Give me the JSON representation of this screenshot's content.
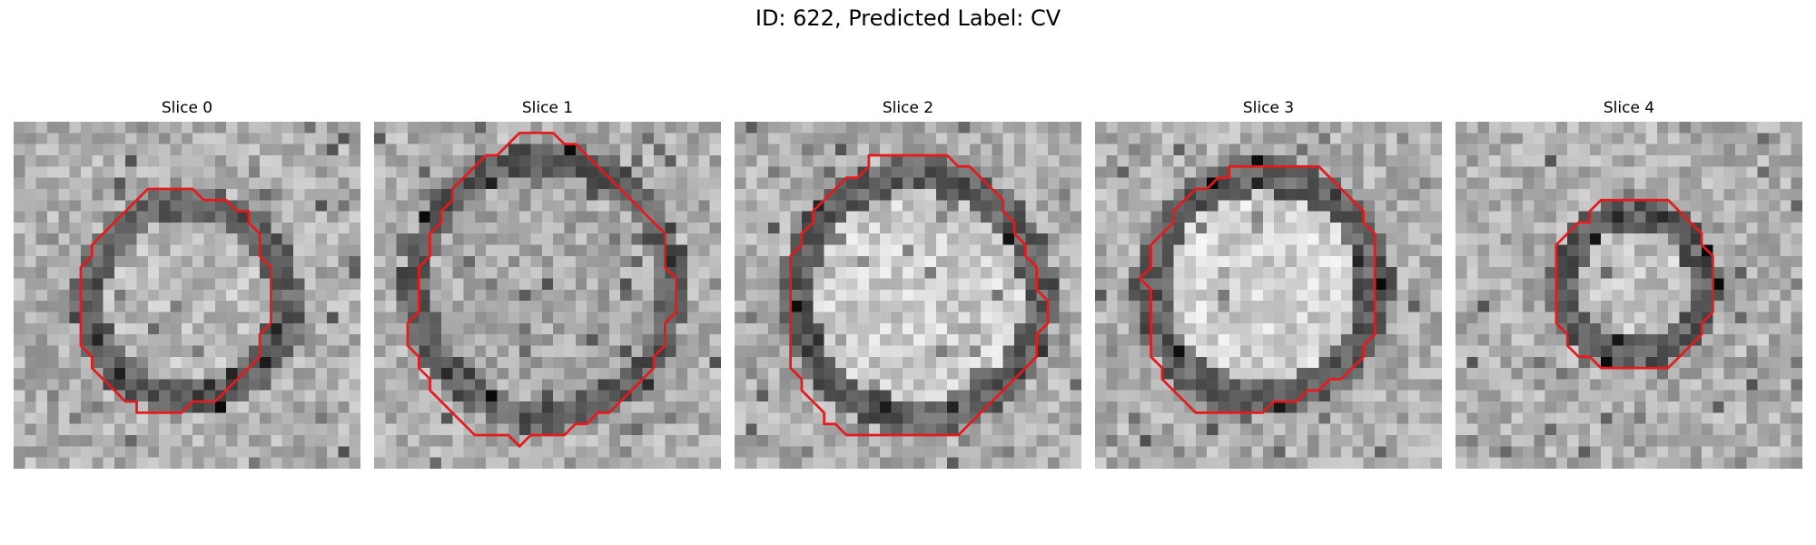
{
  "figure": {
    "title": "ID: 622, Predicted Label: CV"
  },
  "slices": [
    {
      "title": "Slice 0",
      "contour": [
        [
          12,
          6
        ],
        [
          16,
          6
        ],
        [
          17,
          7
        ],
        [
          19,
          7
        ],
        [
          20,
          8
        ],
        [
          21,
          8
        ],
        [
          21,
          9
        ],
        [
          22,
          10
        ],
        [
          22,
          12
        ],
        [
          23,
          13
        ],
        [
          23,
          18
        ],
        [
          22,
          19
        ],
        [
          22,
          21
        ],
        [
          21,
          22
        ],
        [
          20,
          23
        ],
        [
          19,
          24
        ],
        [
          18,
          25
        ],
        [
          16,
          25
        ],
        [
          15,
          26
        ],
        [
          11,
          26
        ],
        [
          11,
          25
        ],
        [
          10,
          25
        ],
        [
          9,
          24
        ],
        [
          8,
          23
        ],
        [
          7,
          22
        ],
        [
          7,
          21
        ],
        [
          6,
          20
        ],
        [
          6,
          16
        ],
        [
          6,
          13
        ],
        [
          7,
          12
        ],
        [
          7,
          11
        ],
        [
          8,
          10
        ],
        [
          9,
          9
        ],
        [
          10,
          8
        ],
        [
          11,
          7
        ]
      ],
      "outline_color": "#e41a1c"
    },
    {
      "title": "Slice 1",
      "contour": [
        [
          12,
          2
        ],
        [
          13,
          1
        ],
        [
          16,
          1
        ],
        [
          17,
          2
        ],
        [
          18,
          2
        ],
        [
          19,
          3
        ],
        [
          20,
          4
        ],
        [
          21,
          5
        ],
        [
          22,
          6
        ],
        [
          23,
          7
        ],
        [
          24,
          8
        ],
        [
          25,
          9
        ],
        [
          26,
          10
        ],
        [
          26,
          13
        ],
        [
          27,
          14
        ],
        [
          27,
          17
        ],
        [
          26,
          18
        ],
        [
          26,
          20
        ],
        [
          25,
          21
        ],
        [
          25,
          22
        ],
        [
          24,
          23
        ],
        [
          23,
          24
        ],
        [
          22,
          25
        ],
        [
          21,
          26
        ],
        [
          20,
          26
        ],
        [
          19,
          27
        ],
        [
          18,
          27
        ],
        [
          17,
          28
        ],
        [
          14,
          28
        ],
        [
          13,
          29
        ],
        [
          12,
          28
        ],
        [
          9,
          28
        ],
        [
          8,
          27
        ],
        [
          7,
          26
        ],
        [
          6,
          25
        ],
        [
          5,
          24
        ],
        [
          5,
          23
        ],
        [
          4,
          22
        ],
        [
          4,
          21
        ],
        [
          3,
          20
        ],
        [
          3,
          18
        ],
        [
          4,
          17
        ],
        [
          4,
          13
        ],
        [
          5,
          12
        ],
        [
          5,
          10
        ],
        [
          6,
          9
        ],
        [
          6,
          8
        ],
        [
          7,
          7
        ],
        [
          7,
          6
        ],
        [
          8,
          5
        ],
        [
          9,
          4
        ],
        [
          10,
          3
        ],
        [
          11,
          3
        ]
      ],
      "outline_color": "#e41a1c"
    },
    {
      "title": "Slice 2",
      "contour": [
        [
          13,
          3
        ],
        [
          19,
          3
        ],
        [
          20,
          4
        ],
        [
          21,
          4
        ],
        [
          22,
          5
        ],
        [
          23,
          6
        ],
        [
          24,
          7
        ],
        [
          24,
          8
        ],
        [
          25,
          9
        ],
        [
          25,
          10
        ],
        [
          26,
          11
        ],
        [
          26,
          12
        ],
        [
          27,
          13
        ],
        [
          27,
          15
        ],
        [
          28,
          16
        ],
        [
          28,
          18
        ],
        [
          27,
          19
        ],
        [
          27,
          21
        ],
        [
          26,
          22
        ],
        [
          25,
          23
        ],
        [
          24,
          24
        ],
        [
          23,
          25
        ],
        [
          22,
          26
        ],
        [
          21,
          27
        ],
        [
          20,
          28
        ],
        [
          10,
          28
        ],
        [
          9,
          27
        ],
        [
          8,
          27
        ],
        [
          8,
          26
        ],
        [
          7,
          25
        ],
        [
          6,
          24
        ],
        [
          6,
          23
        ],
        [
          5,
          22
        ],
        [
          5,
          20
        ],
        [
          5,
          14
        ],
        [
          5,
          12
        ],
        [
          6,
          11
        ],
        [
          6,
          10
        ],
        [
          7,
          9
        ],
        [
          7,
          8
        ],
        [
          8,
          7
        ],
        [
          9,
          6
        ],
        [
          10,
          5
        ],
        [
          11,
          5
        ],
        [
          12,
          4
        ],
        [
          12,
          3
        ]
      ],
      "outline_color": "#e41a1c"
    },
    {
      "title": "Slice 3",
      "contour": [
        [
          12,
          4
        ],
        [
          20,
          4
        ],
        [
          21,
          5
        ],
        [
          22,
          6
        ],
        [
          23,
          7
        ],
        [
          24,
          8
        ],
        [
          24,
          9
        ],
        [
          25,
          10
        ],
        [
          25,
          19
        ],
        [
          24,
          20
        ],
        [
          24,
          21
        ],
        [
          23,
          22
        ],
        [
          22,
          23
        ],
        [
          21,
          23
        ],
        [
          20,
          24
        ],
        [
          19,
          24
        ],
        [
          18,
          25
        ],
        [
          16,
          25
        ],
        [
          15,
          26
        ],
        [
          9,
          26
        ],
        [
          8,
          25
        ],
        [
          7,
          24
        ],
        [
          6,
          23
        ],
        [
          6,
          22
        ],
        [
          5,
          21
        ],
        [
          5,
          15
        ],
        [
          5,
          15
        ],
        [
          4,
          14
        ],
        [
          5,
          13
        ],
        [
          5,
          11
        ],
        [
          6,
          10
        ],
        [
          7,
          9
        ],
        [
          7,
          8
        ],
        [
          8,
          7
        ],
        [
          9,
          6
        ],
        [
          10,
          6
        ],
        [
          11,
          5
        ],
        [
          12,
          5
        ]
      ],
      "outline_color": "#e41a1c"
    },
    {
      "title": "Slice 4",
      "contour": [
        [
          13,
          7
        ],
        [
          19,
          7
        ],
        [
          20,
          8
        ],
        [
          21,
          9
        ],
        [
          22,
          10
        ],
        [
          22,
          11
        ],
        [
          23,
          12
        ],
        [
          23,
          17
        ],
        [
          22,
          18
        ],
        [
          22,
          19
        ],
        [
          21,
          20
        ],
        [
          20,
          21
        ],
        [
          19,
          22
        ],
        [
          13,
          22
        ],
        [
          12,
          21
        ],
        [
          11,
          21
        ],
        [
          10,
          20
        ],
        [
          10,
          19
        ],
        [
          9,
          18
        ],
        [
          9,
          17
        ],
        [
          9,
          11
        ],
        [
          10,
          10
        ],
        [
          11,
          9
        ],
        [
          12,
          9
        ],
        [
          12,
          8
        ]
      ],
      "outline_color": "#e41a1c"
    }
  ]
}
